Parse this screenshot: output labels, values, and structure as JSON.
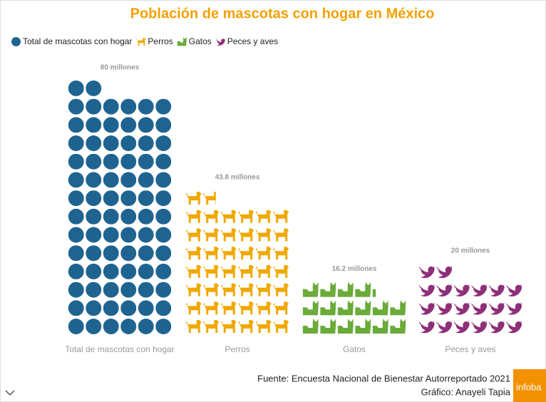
{
  "chart_data": {
    "type": "pictogram",
    "title": "Población de mascotas con hogar en México",
    "categories": [
      "Total de mascotas con hogar",
      "Perros",
      "Gatos",
      "Peces y aves"
    ],
    "values": [
      80,
      43.8,
      16.2,
      20
    ],
    "value_labels": [
      "80 millones",
      "43.8 millones",
      "16.2 millones",
      "20 millones"
    ],
    "colors": [
      "#1f6491",
      "#f0a800",
      "#6aab3a",
      "#8e2f79"
    ],
    "legend": true,
    "source": "Fuente: Encuesta Nacional de Bienestar Autorreportado 2021",
    "credit": "Gráfico: Anayeli Tapia"
  },
  "logo": "infoba"
}
